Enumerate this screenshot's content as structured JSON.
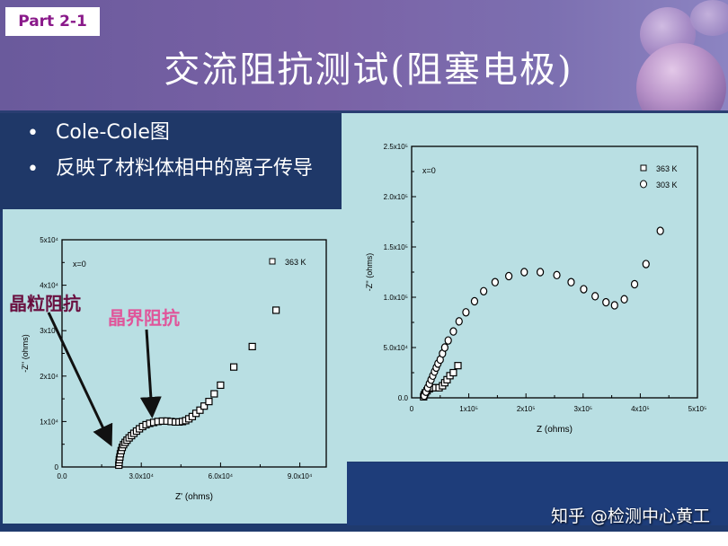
{
  "header": {
    "badge": "Part 2-1",
    "title": "交流阻抗测试(阻塞电极)"
  },
  "bullets": [
    {
      "symbol": "•",
      "text": "Cole-Cole图"
    },
    {
      "symbol": "•",
      "text": "反映了材料体相中的离子传导"
    }
  ],
  "annotations": {
    "grain": {
      "text": "晶粒阻抗",
      "color": "#6a1040"
    },
    "boundary": {
      "text": "晶界阻抗",
      "color": "#e0559a"
    }
  },
  "watermark": "知乎 @检测中心黄工",
  "colors": {
    "header": "#7a62a6",
    "badge_text": "#8a1a8a",
    "panel": "#b9dfe3",
    "dark_blue": "#1f3a6e"
  },
  "chart_data": [
    {
      "type": "scatter",
      "title": "",
      "annotation": "x=0",
      "xlabel": "Z' (ohms)",
      "ylabel": "-Z'' (ohms)",
      "xlim": [
        0,
        100000
      ],
      "ylim": [
        0,
        50000
      ],
      "xticks": [
        {
          "v": 0,
          "label": "0.0"
        },
        {
          "v": 30000,
          "label": "3.0x10⁴"
        },
        {
          "v": 60000,
          "label": "6.0x10⁴"
        },
        {
          "v": 90000,
          "label": "9.0x10⁴"
        }
      ],
      "yticks": [
        {
          "v": 0,
          "label": "0"
        },
        {
          "v": 10000,
          "label": "1x10⁴"
        },
        {
          "v": 20000,
          "label": "2x10⁴"
        },
        {
          "v": 30000,
          "label": "3x10⁴"
        },
        {
          "v": 40000,
          "label": "4x10⁴"
        },
        {
          "v": 50000,
          "label": "5x10⁴"
        }
      ],
      "legend": [
        {
          "marker": "square",
          "label": "363 K"
        }
      ],
      "legend_position": "upper right",
      "grid": false,
      "series": [
        {
          "name": "363 K",
          "marker": "square",
          "x": [
            21500,
            21600,
            21700,
            21900,
            22100,
            22400,
            22800,
            23300,
            23900,
            24600,
            25400,
            26300,
            27200,
            28200,
            29300,
            30500,
            31800,
            33200,
            34700,
            36300,
            38000,
            39700,
            41300,
            42900,
            44300,
            45600,
            46800,
            48000,
            49300,
            50700,
            52200,
            53800,
            55600,
            57600,
            60000,
            65000,
            72000,
            81000
          ],
          "y": [
            400,
            1000,
            1600,
            2200,
            2900,
            3600,
            4300,
            4900,
            5400,
            5900,
            6400,
            6900,
            7400,
            7900,
            8400,
            8900,
            9300,
            9600,
            9800,
            10000,
            10100,
            10100,
            10000,
            9900,
            9900,
            10000,
            10200,
            10600,
            11100,
            11800,
            12500,
            13400,
            14400,
            16100,
            18000,
            22000,
            26500,
            34500
          ]
        }
      ]
    },
    {
      "type": "scatter",
      "title": "",
      "annotation": "x=0",
      "xlabel": "Z (ohms)",
      "ylabel": "-Z'' (ohms)",
      "xlim": [
        0,
        500000
      ],
      "ylim": [
        0,
        250000
      ],
      "xticks": [
        {
          "v": 0,
          "label": "0"
        },
        {
          "v": 100000,
          "label": "1x10⁵"
        },
        {
          "v": 200000,
          "label": "2x10⁵"
        },
        {
          "v": 300000,
          "label": "3x10⁵"
        },
        {
          "v": 400000,
          "label": "4x10⁵"
        },
        {
          "v": 500000,
          "label": "5x10⁵"
        }
      ],
      "yticks": [
        {
          "v": 0,
          "label": "0.0"
        },
        {
          "v": 50000,
          "label": "5.0x10⁴"
        },
        {
          "v": 100000,
          "label": "1.0x10⁵"
        },
        {
          "v": 150000,
          "label": "1.5x10⁵"
        },
        {
          "v": 200000,
          "label": "2.0x10⁵"
        },
        {
          "v": 250000,
          "label": "2.5x10⁵"
        }
      ],
      "legend": [
        {
          "marker": "square",
          "label": "363 K"
        },
        {
          "marker": "circle",
          "label": "303 K"
        }
      ],
      "legend_position": "upper right",
      "grid": false,
      "series": [
        {
          "name": "363 K",
          "marker": "square",
          "x": [
            21000,
            22000,
            24000,
            27000,
            31000,
            36000,
            42000,
            48000,
            54000,
            58000,
            62000,
            67000,
            73000,
            81000
          ],
          "y": [
            1000,
            3000,
            5000,
            7000,
            9000,
            10000,
            10000,
            10000,
            12000,
            15000,
            18000,
            22000,
            25000,
            32000
          ]
        },
        {
          "name": "303 K",
          "marker": "circle",
          "x": [
            22000,
            25000,
            28000,
            31000,
            34000,
            37000,
            40000,
            43000,
            46000,
            50000,
            54000,
            58000,
            64000,
            73000,
            83000,
            95000,
            110000,
            126000,
            146000,
            170000,
            197000,
            225000,
            254000,
            279000,
            301000,
            321000,
            340000,
            355000,
            372000,
            390000,
            410000,
            435000
          ],
          "y": [
            2000,
            6000,
            10000,
            14000,
            18000,
            22000,
            26000,
            30000,
            34000,
            38000,
            44000,
            50000,
            57000,
            66000,
            76000,
            85000,
            96000,
            106000,
            115000,
            121000,
            125000,
            125000,
            122000,
            115000,
            108000,
            101000,
            95000,
            92000,
            98000,
            113000,
            133000,
            166000
          ]
        }
      ]
    }
  ]
}
